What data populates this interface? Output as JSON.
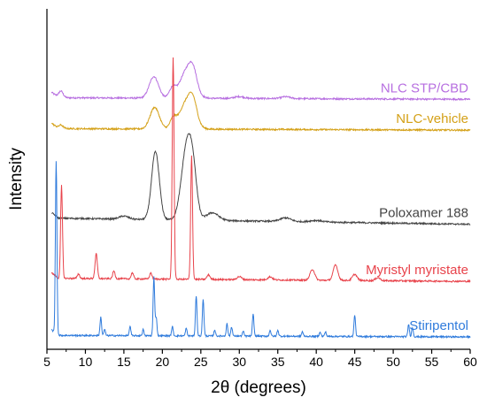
{
  "chart_data": {
    "type": "line",
    "title": "",
    "xlabel": "2θ (degrees)",
    "ylabel": "Intensity",
    "xlim": [
      5,
      60
    ],
    "ylim": [
      0,
      100
    ],
    "x_ticks": [
      5,
      10,
      15,
      20,
      25,
      30,
      35,
      40,
      45,
      50,
      55,
      60
    ],
    "grid": false,
    "legend": "inline labels at right",
    "series": [
      {
        "name": "NLC STP/CBD",
        "color": "#b76fe0",
        "baseline": 77.5,
        "tail": 77.0,
        "peaks": [
          [
            6.8,
            2.2,
            0.3
          ],
          [
            18.9,
            7.0,
            0.6
          ],
          [
            21.3,
            3.0,
            0.4
          ],
          [
            23.2,
            9.0,
            0.9
          ],
          [
            24.0,
            5.0,
            0.5
          ],
          [
            30.0,
            0.6,
            0.6
          ],
          [
            36.0,
            0.6,
            0.6
          ]
        ]
      },
      {
        "name": "NLC-vehicle",
        "color": "#d4a017",
        "baseline": 67.5,
        "tail": 67.0,
        "peaks": [
          [
            6.8,
            1.2,
            0.3
          ],
          [
            19.0,
            7.0,
            0.6
          ],
          [
            21.4,
            3.0,
            0.4
          ],
          [
            23.2,
            9.0,
            0.9
          ],
          [
            24.0,
            5.0,
            0.5
          ]
        ]
      },
      {
        "name": "Poloxamer 188",
        "color": "#444444",
        "baseline": 38.5,
        "tail": 36.5,
        "peaks": [
          [
            15.0,
            1.0,
            0.6
          ],
          [
            19.1,
            22.0,
            0.5
          ],
          [
            23.2,
            24.0,
            0.7
          ],
          [
            24.0,
            10.0,
            0.5
          ],
          [
            26.5,
            2.5,
            0.8
          ],
          [
            36.0,
            1.2,
            0.7
          ],
          [
            40.0,
            0.5,
            0.8
          ]
        ]
      },
      {
        "name": "Myristyl myristate",
        "color": "#e8434b",
        "baseline": 19.0,
        "tail": 18.0,
        "peaks": [
          [
            6.9,
            30.0,
            0.12
          ],
          [
            9.1,
            1.5,
            0.15
          ],
          [
            11.4,
            8.0,
            0.15
          ],
          [
            13.7,
            2.5,
            0.15
          ],
          [
            16.1,
            2.0,
            0.15
          ],
          [
            18.5,
            2.0,
            0.15
          ],
          [
            21.4,
            72.0,
            0.12
          ],
          [
            23.8,
            40.0,
            0.12
          ],
          [
            26.0,
            1.5,
            0.2
          ],
          [
            30.0,
            1.0,
            0.3
          ],
          [
            34.0,
            1.0,
            0.3
          ],
          [
            39.5,
            3.5,
            0.3
          ],
          [
            42.5,
            5.0,
            0.3
          ],
          [
            45.0,
            2.0,
            0.3
          ],
          [
            48.0,
            1.0,
            0.3
          ]
        ]
      },
      {
        "name": "Stiripentol",
        "color": "#2f7bdc",
        "baseline": 0.5,
        "tail": 0.0,
        "peaks": [
          [
            6.2,
            56.0,
            0.1
          ],
          [
            12.0,
            6.0,
            0.1
          ],
          [
            12.5,
            2.0,
            0.1
          ],
          [
            15.8,
            3.0,
            0.1
          ],
          [
            17.5,
            2.0,
            0.1
          ],
          [
            18.9,
            19.0,
            0.1
          ],
          [
            19.2,
            6.0,
            0.1
          ],
          [
            21.3,
            3.0,
            0.1
          ],
          [
            23.1,
            2.5,
            0.1
          ],
          [
            24.4,
            13.0,
            0.1
          ],
          [
            25.3,
            12.0,
            0.1
          ],
          [
            26.8,
            2.0,
            0.1
          ],
          [
            28.4,
            4.0,
            0.1
          ],
          [
            29.0,
            3.0,
            0.1
          ],
          [
            30.5,
            1.5,
            0.1
          ],
          [
            31.8,
            7.0,
            0.1
          ],
          [
            34.0,
            2.0,
            0.1
          ],
          [
            35.0,
            2.0,
            0.1
          ],
          [
            38.2,
            1.5,
            0.1
          ],
          [
            40.5,
            1.5,
            0.1
          ],
          [
            41.2,
            1.5,
            0.1
          ],
          [
            45.0,
            7.0,
            0.1
          ],
          [
            52.0,
            4.0,
            0.1
          ],
          [
            52.5,
            3.0,
            0.1
          ]
        ]
      }
    ]
  }
}
